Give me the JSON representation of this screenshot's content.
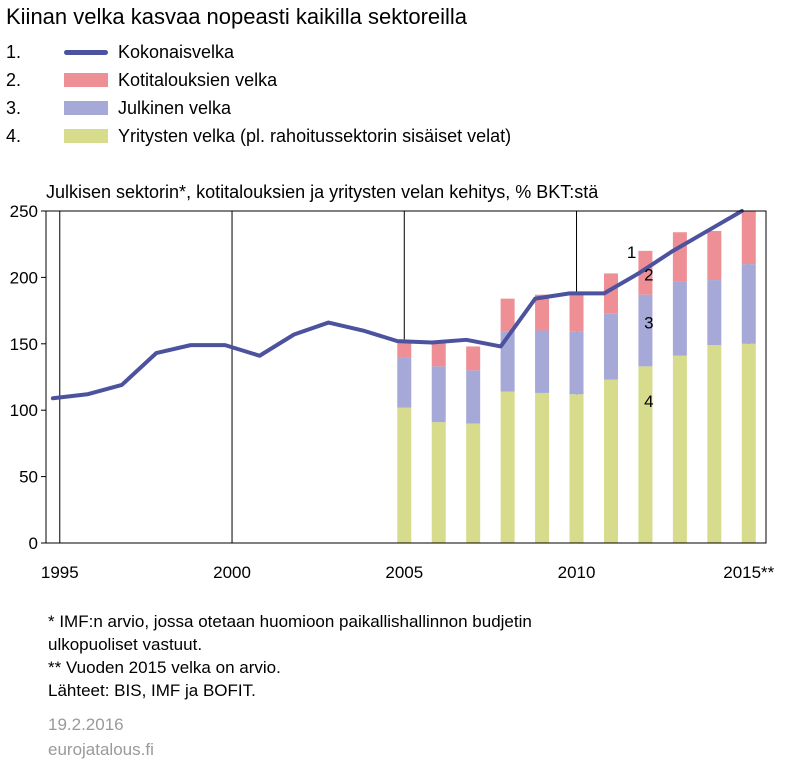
{
  "title": "Kiinan velka kasvaa nopeasti kaikilla sektoreilla",
  "legend": [
    {
      "num": "1.",
      "label": "Kokonaisvelka",
      "color": "#4c529d",
      "kind": "line"
    },
    {
      "num": "2.",
      "label": "Kotitalouksien velka",
      "color": "#ee8f96",
      "kind": "bar"
    },
    {
      "num": "3.",
      "label": "Julkinen velka",
      "color": "#a6a9d8",
      "kind": "bar"
    },
    {
      "num": "4.",
      "label": "Yritysten velka (pl. rahoitussektorin sisäiset velat)",
      "color": "#d6dc8b",
      "kind": "bar"
    }
  ],
  "chart_data": {
    "type": "bar",
    "subtitle": "Julkisen sektorin*, kotitalouksien ja yritysten velan kehitys, % BKT:stä",
    "ylim": [
      0,
      250
    ],
    "yticks": [
      "0",
      "50",
      "100",
      "150",
      "200",
      "250"
    ],
    "xticks": [
      {
        "year": 1995,
        "label": "1995"
      },
      {
        "year": 2000,
        "label": "2000"
      },
      {
        "year": 2005,
        "label": "2005"
      },
      {
        "year": 2010,
        "label": "2010"
      },
      {
        "year": 2015,
        "label": "2015**"
      }
    ],
    "xlim": [
      1994.6,
      2015.5
    ],
    "grid": true,
    "line": {
      "name": "Kokonaisvelka",
      "x": [
        1994.8,
        1995.8,
        1996.8,
        1997.8,
        1998.8,
        1999.8,
        2000.8,
        2001.8,
        2002.8,
        2003.8,
        2004.8,
        2005.8,
        2006.8,
        2007.8,
        2008.8,
        2009.8,
        2010.8,
        2011.8,
        2012.8,
        2013.8,
        2014.8
      ],
      "values": [
        109,
        112,
        119,
        143,
        149,
        149,
        141,
        157,
        166,
        160,
        152,
        151,
        153,
        148,
        184,
        188,
        188,
        203,
        220,
        235,
        250
      ]
    },
    "bars": {
      "x": [
        2005,
        2006,
        2007,
        2008,
        2009,
        2010,
        2011,
        2012,
        2013,
        2014,
        2015
      ],
      "series": [
        {
          "name": "Yritysten velka (pl. rahoitussektorin sisäiset velat)",
          "color": "#d6dc8b",
          "values": [
            102,
            91,
            90,
            114,
            113,
            112,
            123,
            133,
            141,
            149,
            150
          ]
        },
        {
          "name": "Julkinen velka",
          "color": "#a6a9d8",
          "values": [
            38,
            42,
            40,
            45,
            47,
            47,
            50,
            54,
            56,
            49,
            60
          ]
        },
        {
          "name": "Kotitalouksien velka",
          "color": "#ee8f96",
          "values": [
            11,
            18,
            18,
            25,
            27,
            29,
            30,
            33,
            37,
            37,
            40
          ]
        }
      ]
    },
    "annotations": [
      {
        "text": "1",
        "x": 2011.6,
        "y": 219
      },
      {
        "text": "2",
        "x": 2012.1,
        "y": 202
      },
      {
        "text": "3",
        "x": 2012.1,
        "y": 166
      },
      {
        "text": "4",
        "x": 2012.1,
        "y": 107
      }
    ]
  },
  "notes": [
    "* IMF:n arvio, jossa otetaan huomioon paikallishallinnon budjetin",
    "ulkopuoliset vastuut.",
    "** Vuoden 2015 velka on arvio.",
    "Lähteet: BIS, IMF ja BOFIT."
  ],
  "date": "19.2.2016",
  "source_site": "eurojatalous.fi"
}
